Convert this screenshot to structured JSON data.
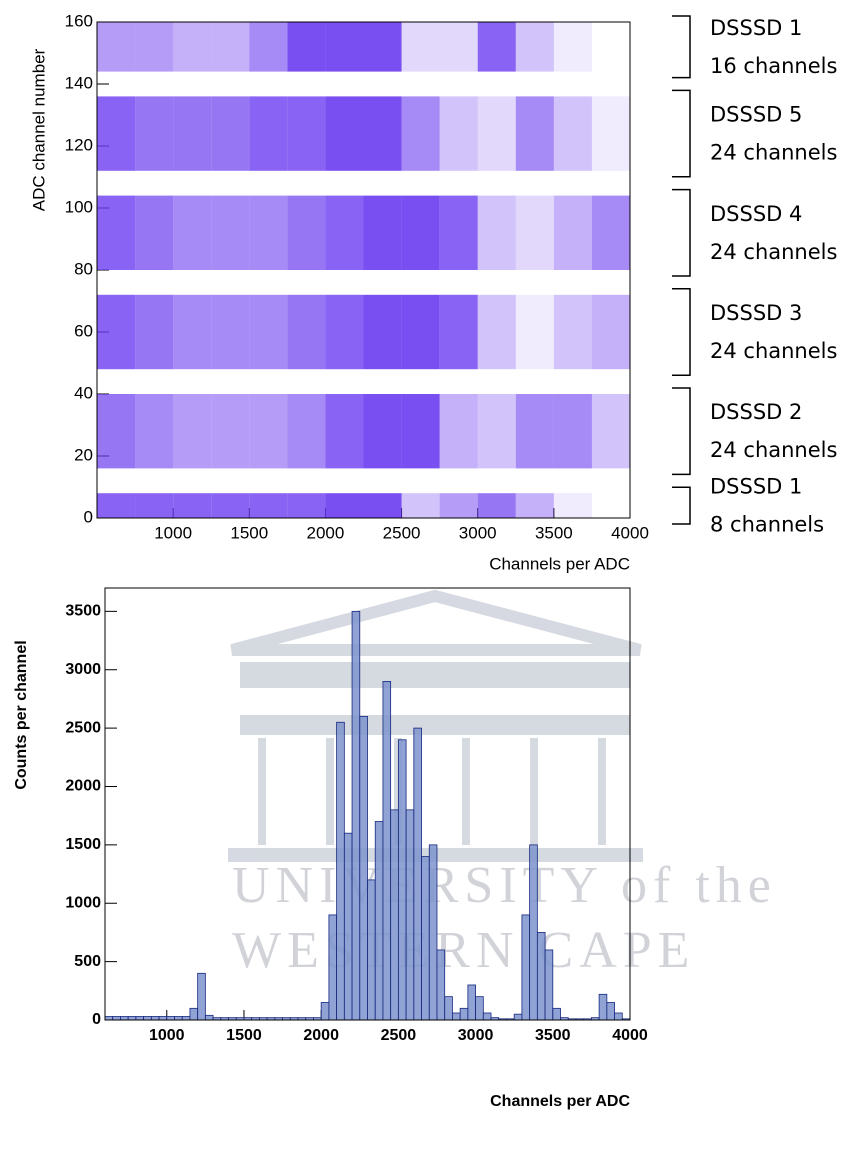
{
  "chart_data": [
    {
      "type": "heatmap",
      "xlabel": "Channels per ADC",
      "ylabel": "ADC channel number",
      "xlim": [
        500,
        4000
      ],
      "ylim": [
        0,
        160
      ],
      "xticks": [
        1000,
        1500,
        2000,
        2500,
        3000,
        3500,
        4000
      ],
      "yticks": [
        0,
        20,
        40,
        60,
        80,
        100,
        120,
        140,
        160
      ],
      "x": [
        500,
        750,
        1000,
        1250,
        1500,
        1750,
        2000,
        2250,
        2500,
        2750,
        3000,
        3250,
        3500,
        3750,
        4000
      ],
      "y": [
        [
          0,
          8
        ],
        [
          16,
          40
        ],
        [
          48,
          72
        ],
        [
          80,
          104
        ],
        [
          112,
          136
        ],
        [
          144,
          160
        ]
      ],
      "values": [
        [
          0.8,
          0.8,
          0.8,
          0.8,
          0.8,
          0.8,
          0.9,
          0.9,
          0.3,
          0.5,
          0.7,
          0.4,
          0.1,
          0
        ],
        [
          0.7,
          0.6,
          0.5,
          0.5,
          0.5,
          0.6,
          0.8,
          0.9,
          0.9,
          0.4,
          0.3,
          0.6,
          0.6,
          0.3
        ],
        [
          0.8,
          0.7,
          0.6,
          0.6,
          0.6,
          0.7,
          0.8,
          0.9,
          0.9,
          0.8,
          0.3,
          0.1,
          0.3,
          0.4
        ],
        [
          0.8,
          0.7,
          0.6,
          0.6,
          0.6,
          0.7,
          0.8,
          0.9,
          0.9,
          0.8,
          0.3,
          0.2,
          0.4,
          0.6
        ],
        [
          0.8,
          0.7,
          0.7,
          0.7,
          0.8,
          0.8,
          0.9,
          0.9,
          0.6,
          0.3,
          0.2,
          0.6,
          0.3,
          0.1
        ],
        [
          0.5,
          0.5,
          0.4,
          0.4,
          0.6,
          0.9,
          0.9,
          0.9,
          0.2,
          0.2,
          0.8,
          0.3,
          0.1,
          0
        ]
      ],
      "color": "#6b3cf0",
      "annotations": [
        {
          "title": "DSSSD 1",
          "text": "8 channels"
        },
        {
          "title": "DSSSD 2",
          "text": "24 channels"
        },
        {
          "title": "DSSSD 3",
          "text": "24 channels"
        },
        {
          "title": "DSSSD 4",
          "text": "24 channels"
        },
        {
          "title": "DSSSD 5",
          "text": "24 channels"
        },
        {
          "title": "DSSSD 1",
          "text": "16 channels"
        }
      ]
    },
    {
      "type": "histogram",
      "xlabel": "Channels per ADC",
      "ylabel": "Counts per channel",
      "xlim": [
        600,
        4000
      ],
      "ylim": [
        0,
        3700
      ],
      "xticks": [
        1000,
        1500,
        2000,
        2500,
        3000,
        3500,
        4000
      ],
      "yticks": [
        0,
        500,
        1000,
        1500,
        2000,
        2500,
        3000,
        3500
      ],
      "bins": [
        600,
        650,
        700,
        750,
        800,
        850,
        900,
        950,
        1000,
        1050,
        1100,
        1150,
        1200,
        1250,
        1300,
        1350,
        1400,
        1450,
        1500,
        1550,
        1600,
        1650,
        1700,
        1750,
        1800,
        1850,
        1900,
        1950,
        2000,
        2050,
        2100,
        2150,
        2200,
        2250,
        2300,
        2350,
        2400,
        2450,
        2500,
        2550,
        2600,
        2650,
        2700,
        2750,
        2800,
        2850,
        2900,
        2950,
        3000,
        3050,
        3100,
        3150,
        3200,
        3250,
        3300,
        3350,
        3400,
        3450,
        3500,
        3550,
        3600,
        3650,
        3700,
        3750,
        3800,
        3850,
        3900,
        3950,
        4000
      ],
      "values": [
        30,
        30,
        30,
        30,
        30,
        30,
        30,
        30,
        30,
        30,
        30,
        100,
        400,
        40,
        20,
        20,
        20,
        20,
        20,
        20,
        20,
        20,
        20,
        20,
        20,
        20,
        20,
        20,
        150,
        900,
        2550,
        1600,
        3500,
        2600,
        1200,
        1700,
        2900,
        1800,
        2400,
        1800,
        2500,
        1400,
        1500,
        600,
        200,
        60,
        100,
        300,
        200,
        60,
        20,
        10,
        10,
        50,
        900,
        1500,
        750,
        600,
        100,
        20,
        10,
        10,
        10,
        20,
        220,
        150,
        60,
        10
      ],
      "color": "#7d93cc",
      "edgecolor": "#16287f"
    }
  ],
  "watermark": [
    "UNIVERSITY of the",
    "WESTERN CAPE"
  ]
}
